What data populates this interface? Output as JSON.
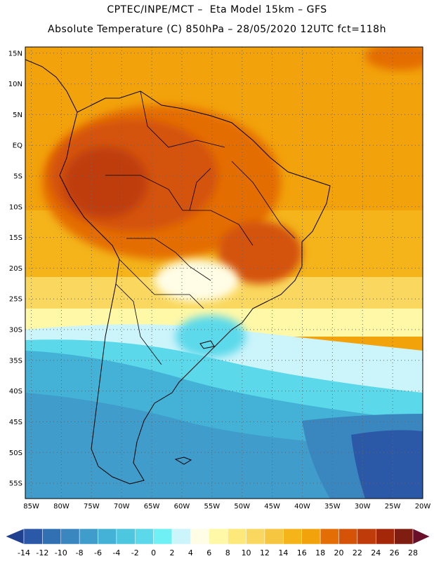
{
  "header": {
    "line1": "CPTEC/INPE/MCT –  Eta Model 15km – GFS",
    "line2": "Absolute Temperature (C) 850hPa – 28/05/2020 12UTC fct=118h"
  },
  "map": {
    "lat_labels": [
      "15N",
      "10N",
      "5N",
      "EQ",
      "5S",
      "10S",
      "15S",
      "20S",
      "25S",
      "30S",
      "35S",
      "40S",
      "45S",
      "50S",
      "55S"
    ],
    "lon_labels": [
      "85W",
      "80W",
      "75W",
      "70W",
      "65W",
      "60W",
      "55W",
      "50W",
      "45W",
      "40W",
      "35W",
      "30W",
      "25W",
      "20W"
    ],
    "lat_extent": [
      -57.5,
      16
    ],
    "lon_extent": [
      -86,
      -20
    ]
  },
  "colorbar": {
    "tick_labels": [
      "-14",
      "-12",
      "-10",
      "-8",
      "-6",
      "-4",
      "-2",
      "0",
      "2",
      "4",
      "6",
      "8",
      "10",
      "12",
      "14",
      "16",
      "18",
      "20",
      "22",
      "24",
      "26",
      "28"
    ],
    "colors": [
      "#1f3f8f",
      "#2b59a8",
      "#3070b3",
      "#3a86bf",
      "#3f9ccb",
      "#43b2d6",
      "#4dc6e0",
      "#5bd9ea",
      "#6ff0f5",
      "#ccf4fb",
      "#fffde6",
      "#fff8a6",
      "#fde87a",
      "#fad85f",
      "#f7c640",
      "#f4b41a",
      "#f2a20a",
      "#e46d06",
      "#d45307",
      "#bf3c0a",
      "#a4270a",
      "#7f1d10",
      "#6a0f2a"
    ]
  }
}
